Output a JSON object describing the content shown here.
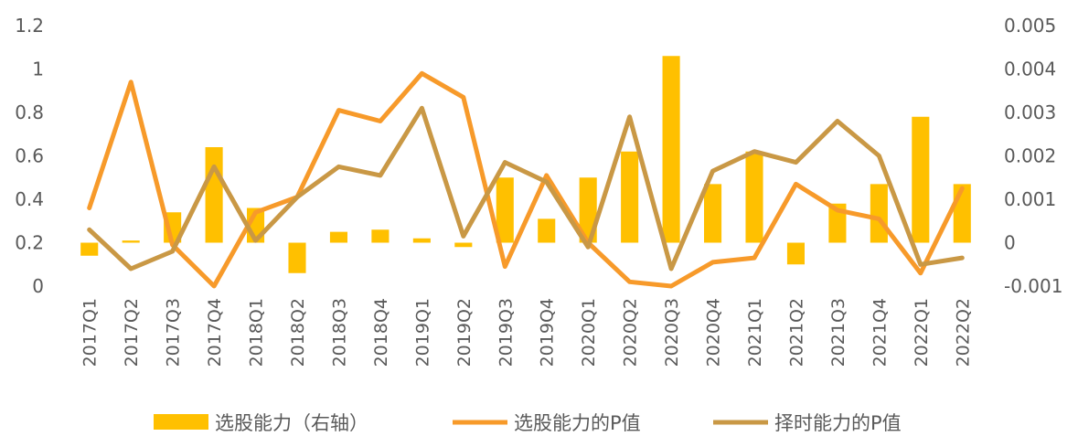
{
  "chart_data": {
    "type": "bar+line",
    "categories": [
      "2017Q1",
      "2017Q2",
      "2017Q3",
      "2017Q4",
      "2018Q1",
      "2018Q2",
      "2018Q3",
      "2018Q4",
      "2019Q1",
      "2019Q2",
      "2019Q3",
      "2019Q4",
      "2020Q1",
      "2020Q2",
      "2020Q3",
      "2020Q4",
      "2021Q1",
      "2021Q2",
      "2021Q3",
      "2021Q4",
      "2022Q1",
      "2022Q2"
    ],
    "left_axis": {
      "min": 0,
      "max": 1.2,
      "ticks": [
        "0",
        "0.2",
        "0.4",
        "0.6",
        "0.8",
        "1",
        "1.2"
      ],
      "tick_values": [
        0,
        0.2,
        0.4,
        0.6,
        0.8,
        1,
        1.2
      ]
    },
    "right_axis": {
      "min": -0.001,
      "max": 0.005,
      "ticks": [
        "-0.001",
        "0",
        "0.001",
        "0.002",
        "0.003",
        "0.004",
        "0.005"
      ],
      "tick_values": [
        -0.001,
        0,
        0.001,
        0.002,
        0.003,
        0.004,
        0.005
      ]
    },
    "series": [
      {
        "name": "选股能力（右轴）",
        "kind": "bar",
        "axis": "right",
        "color": "#FFC000",
        "values": [
          -0.0003,
          5e-05,
          0.0007,
          0.0022,
          0.0008,
          -0.0007,
          0.00025,
          0.0003,
          0.0001,
          -0.0001,
          0.0015,
          0.00055,
          0.0015,
          0.0021,
          0.0043,
          0.00135,
          0.0021,
          -0.0005,
          0.0009,
          0.00135,
          0.0029,
          0.00135
        ]
      },
      {
        "name": "选股能力的P值",
        "kind": "line",
        "axis": "left",
        "color": "#F79A2A",
        "values": [
          0.36,
          0.94,
          0.19,
          0.0,
          0.34,
          0.41,
          0.81,
          0.76,
          0.98,
          0.87,
          0.09,
          0.51,
          0.2,
          0.02,
          0.0,
          0.11,
          0.13,
          0.47,
          0.35,
          0.31,
          0.06,
          0.45
        ]
      },
      {
        "name": "择时能力的P值",
        "kind": "line",
        "axis": "left",
        "color": "#C99845",
        "values": [
          0.26,
          0.08,
          0.16,
          0.55,
          0.21,
          0.41,
          0.55,
          0.51,
          0.82,
          0.23,
          0.57,
          0.48,
          0.18,
          0.78,
          0.08,
          0.53,
          0.62,
          0.57,
          0.76,
          0.6,
          0.1,
          0.13
        ]
      }
    ],
    "legend": [
      "选股能力（右轴）",
      "选股能力的P值",
      "择时能力的P值"
    ],
    "legend_position": "bottom",
    "grid": false
  }
}
